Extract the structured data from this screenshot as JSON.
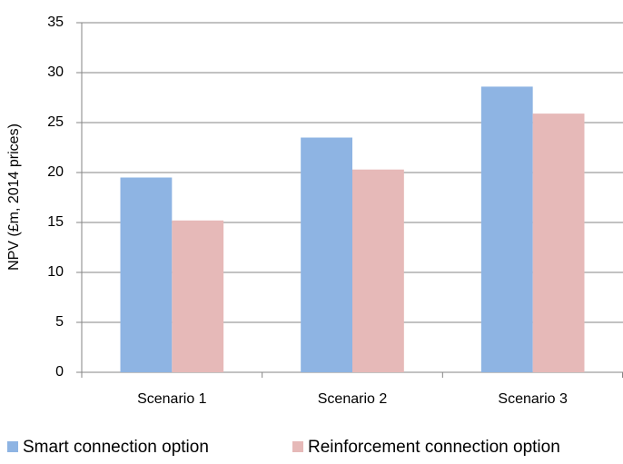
{
  "chart_data": {
    "type": "bar",
    "y_label": "NPV (£m, 2014 prices)",
    "categories": [
      "Scenario 1",
      "Scenario 2",
      "Scenario 3"
    ],
    "series": [
      {
        "name": "Smart connection option",
        "color": "#8eb4e3",
        "values": [
          19.5,
          23.5,
          28.6
        ]
      },
      {
        "name": "Reinforcement connection option",
        "color": "#e6b9b8",
        "values": [
          15.2,
          20.3,
          25.9
        ]
      }
    ],
    "ylim": [
      0,
      35
    ],
    "yticks": [
      0,
      5,
      10,
      15,
      20,
      25,
      30,
      35
    ],
    "grid": true,
    "legend": "bottom"
  }
}
